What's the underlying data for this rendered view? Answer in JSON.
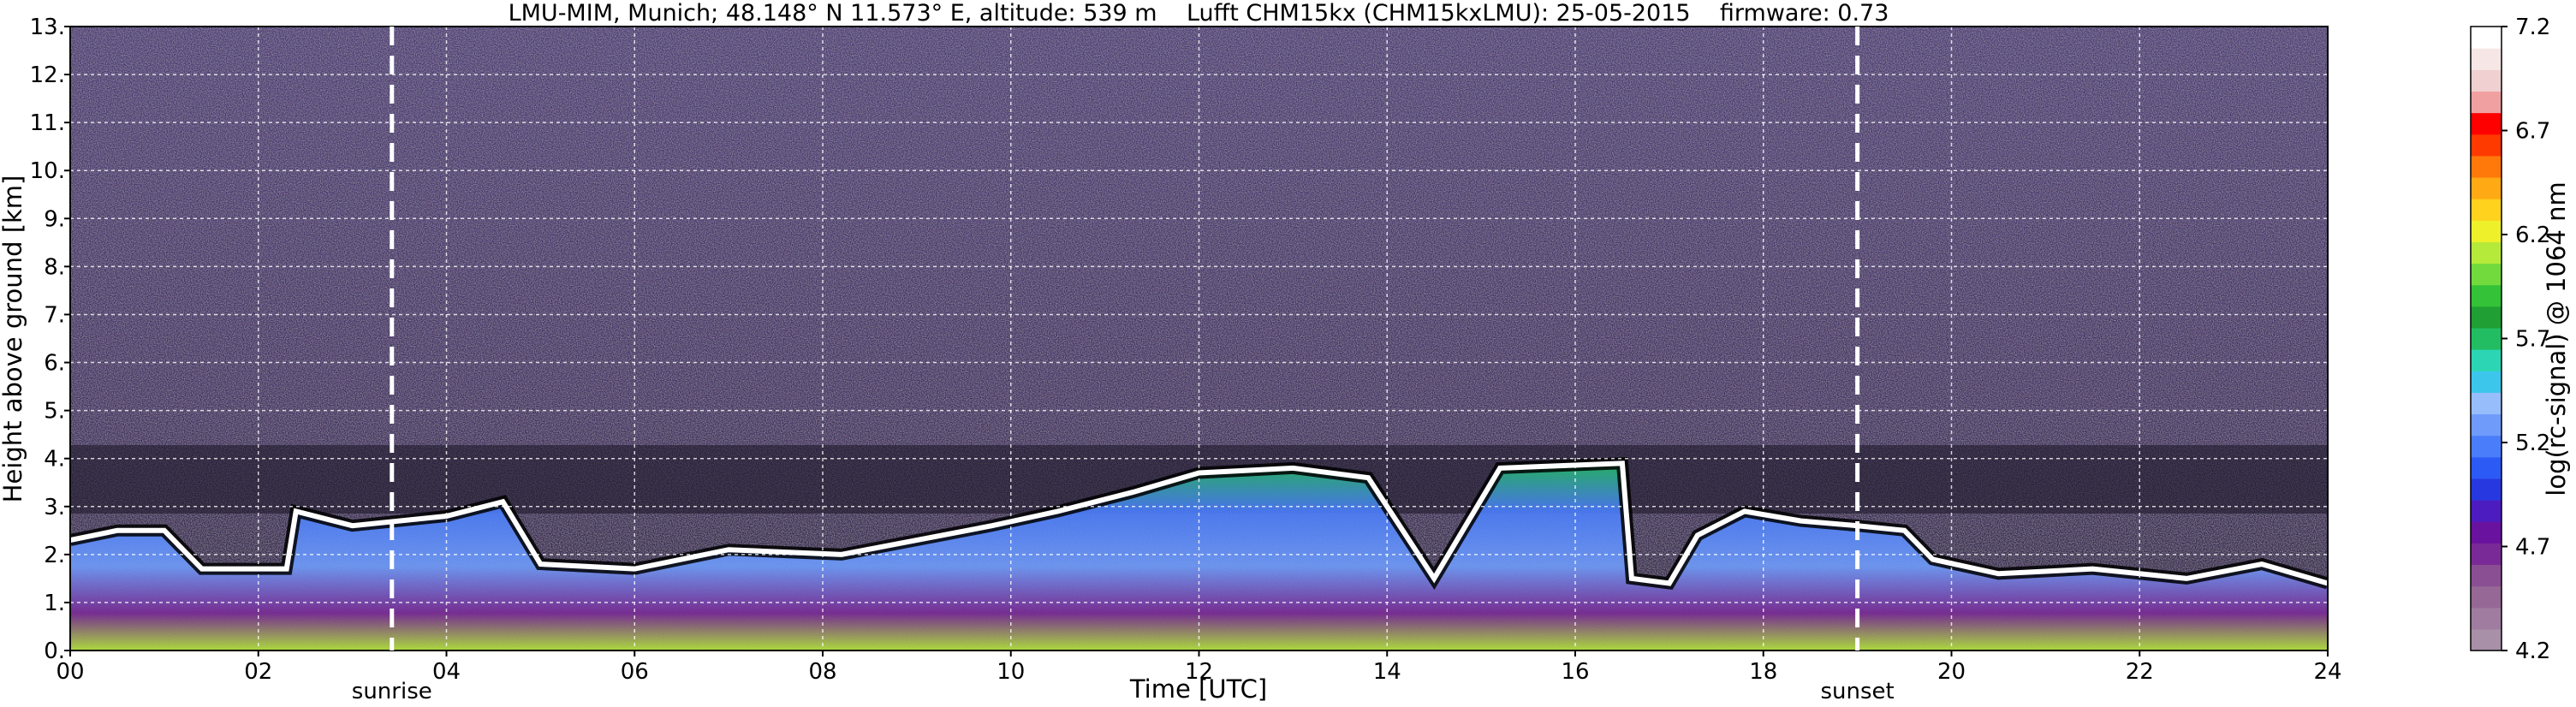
{
  "chart_data": {
    "type": "heatmap",
    "title": "LMU-MIM, Munich; 48.148° N 11.573° E, altitude: 539 m    Lufft CHM15kx (CHM15kxLMU): 25-05-2015    firmware: 0.73",
    "xlabel": "Time [UTC]",
    "ylabel": "Height above ground [km]",
    "x_ticks": [
      "00",
      "02",
      "04",
      "06",
      "08",
      "10",
      "12",
      "14",
      "16",
      "18",
      "20",
      "22",
      "24"
    ],
    "y_ticks": [
      "0.",
      "1.",
      "2.",
      "3.",
      "4.",
      "5.",
      "6.",
      "7.",
      "8.",
      "9.",
      "10.",
      "11.",
      "12.",
      "13."
    ],
    "xlim": [
      0,
      24
    ],
    "ylim": [
      0,
      13
    ],
    "grid": true,
    "colorbar": {
      "label": "log(rc-signal) @ 1064 nm",
      "range": [
        4.2,
        7.2
      ],
      "tick_labels": [
        "4.2",
        "4.7",
        "5.2",
        "5.7",
        "6.2",
        "6.7",
        "7.2"
      ],
      "colors": [
        "#a890a8",
        "#a07ca0",
        "#956895",
        "#8a4f92",
        "#7a2a96",
        "#6a12a0",
        "#4c1cc0",
        "#2838e0",
        "#2c5af5",
        "#4a7dfa",
        "#6f9cfb",
        "#97bdfb",
        "#3cc6ec",
        "#2cd6b4",
        "#22bd62",
        "#1f9f34",
        "#34c238",
        "#72da3c",
        "#b6ea3a",
        "#eef02a",
        "#ffd21e",
        "#ffaa14",
        "#ff780a",
        "#ff3a00",
        "#ff0000",
        "#f0a0a0",
        "#f0d0d0",
        "#f6e6e6",
        "#ffffff"
      ]
    },
    "markers": [
      {
        "label": "sunrise",
        "x": 3.42
      },
      {
        "label": "sunset",
        "x": 19.0
      }
    ],
    "cloud_top_km": [
      {
        "t": 0.0,
        "h": 2.3
      },
      {
        "t": 0.5,
        "h": 2.5
      },
      {
        "t": 1.0,
        "h": 2.5
      },
      {
        "t": 1.4,
        "h": 1.7
      },
      {
        "t": 2.3,
        "h": 1.7
      },
      {
        "t": 2.4,
        "h": 2.9
      },
      {
        "t": 3.0,
        "h": 2.6
      },
      {
        "t": 4.0,
        "h": 2.8
      },
      {
        "t": 4.6,
        "h": 3.1
      },
      {
        "t": 5.0,
        "h": 1.8
      },
      {
        "t": 6.0,
        "h": 1.7
      },
      {
        "t": 7.0,
        "h": 2.1
      },
      {
        "t": 8.2,
        "h": 2.0
      },
      {
        "t": 9.0,
        "h": 2.3
      },
      {
        "t": 9.8,
        "h": 2.6
      },
      {
        "t": 10.5,
        "h": 2.9
      },
      {
        "t": 11.3,
        "h": 3.3
      },
      {
        "t": 12.0,
        "h": 3.7
      },
      {
        "t": 13.0,
        "h": 3.8
      },
      {
        "t": 13.8,
        "h": 3.6
      },
      {
        "t": 14.5,
        "h": 1.5
      },
      {
        "t": 15.2,
        "h": 3.8
      },
      {
        "t": 16.5,
        "h": 3.9
      },
      {
        "t": 16.6,
        "h": 1.5
      },
      {
        "t": 17.0,
        "h": 1.4
      },
      {
        "t": 17.3,
        "h": 2.4
      },
      {
        "t": 17.8,
        "h": 2.9
      },
      {
        "t": 18.4,
        "h": 2.7
      },
      {
        "t": 19.0,
        "h": 2.6
      },
      {
        "t": 19.5,
        "h": 2.5
      },
      {
        "t": 19.8,
        "h": 1.9
      },
      {
        "t": 20.5,
        "h": 1.6
      },
      {
        "t": 21.5,
        "h": 1.7
      },
      {
        "t": 22.5,
        "h": 1.5
      },
      {
        "t": 23.3,
        "h": 1.8
      },
      {
        "t": 24.0,
        "h": 1.4
      }
    ]
  }
}
